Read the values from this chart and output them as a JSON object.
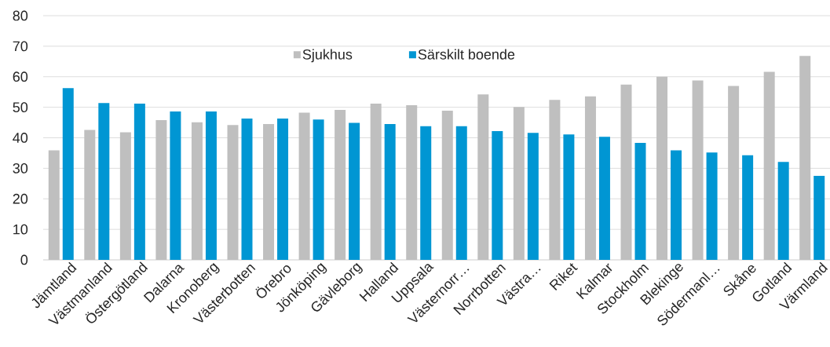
{
  "chart_data": {
    "type": "bar",
    "categories": [
      "Jämtland",
      "Västmanland",
      "Östergötland",
      "Dalarna",
      "Kronoberg",
      "Västerbotten",
      "Örebro",
      "Jönköping",
      "Gävleborg",
      "Halland",
      "Uppsala",
      "Västernorr…",
      "Norrbotten",
      "Västra…",
      "Riket",
      "Kalmar",
      "Stockholm",
      "Blekinge",
      "Södermanl…",
      "Skåne",
      "Gotland",
      "Värmland"
    ],
    "series": [
      {
        "name": "Sjukhus",
        "color": "#bfbfbf",
        "values": [
          35.9,
          42.6,
          41.8,
          45.8,
          45.1,
          44.2,
          44.5,
          48.2,
          49.1,
          51.2,
          50.7,
          48.9,
          54.2,
          50.1,
          52.4,
          53.6,
          57.4,
          60.0,
          58.8,
          57.0,
          61.6,
          66.8
        ]
      },
      {
        "name": "Särskilt boende",
        "color": "#0096d3",
        "values": [
          56.3,
          51.4,
          51.2,
          48.6,
          48.6,
          46.3,
          46.3,
          46.0,
          44.9,
          44.5,
          43.8,
          43.8,
          42.2,
          41.6,
          41.1,
          40.3,
          38.3,
          35.9,
          35.2,
          34.3,
          32.1,
          27.5
        ]
      }
    ],
    "ylim": [
      0,
      80
    ],
    "yticks": [
      0,
      10,
      20,
      30,
      40,
      50,
      60,
      70,
      80
    ],
    "grid": "y",
    "legend": "top"
  }
}
